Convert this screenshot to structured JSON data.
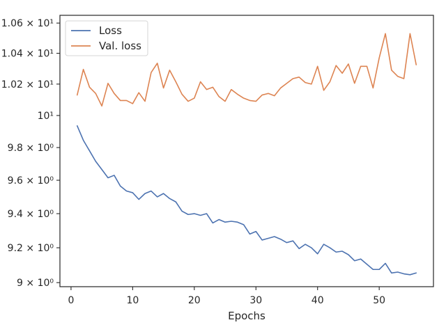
{
  "chart_data": {
    "type": "line",
    "xlabel": "Epochs",
    "ylabel": "",
    "y_scale": "log",
    "grid": false,
    "legend_position": "top-left",
    "xlim": [
      -1.8,
      58.8
    ],
    "ylim": [
      8.977,
      10.652
    ],
    "x_ticks": [
      {
        "value": 0,
        "label": "0"
      },
      {
        "value": 10,
        "label": "10"
      },
      {
        "value": 20,
        "label": "20"
      },
      {
        "value": 30,
        "label": "30"
      },
      {
        "value": 40,
        "label": "40"
      },
      {
        "value": 50,
        "label": "50"
      }
    ],
    "y_ticks": [
      {
        "value": 9.0,
        "label": "9 × 10⁰"
      },
      {
        "value": 9.2,
        "label": "9.2 × 10⁰"
      },
      {
        "value": 9.4,
        "label": "9.4 × 10⁰"
      },
      {
        "value": 9.6,
        "label": "9.6 × 10⁰"
      },
      {
        "value": 9.8,
        "label": "9.8 × 10⁰"
      },
      {
        "value": 10.0,
        "label": "10¹"
      },
      {
        "value": 10.2,
        "label": "1.02 × 10¹"
      },
      {
        "value": 10.4,
        "label": "1.04 × 10¹"
      },
      {
        "value": 10.6,
        "label": "1.06 × 10¹"
      }
    ],
    "series": [
      {
        "name": "Loss",
        "color": "#4c72b0",
        "x": [
          1,
          2,
          3,
          4,
          5,
          6,
          7,
          8,
          9,
          10,
          11,
          12,
          13,
          14,
          15,
          16,
          17,
          18,
          19,
          20,
          21,
          22,
          23,
          24,
          25,
          26,
          27,
          28,
          29,
          30,
          31,
          32,
          33,
          34,
          35,
          36,
          37,
          38,
          39,
          40,
          41,
          42,
          43,
          44,
          45,
          46,
          47,
          48,
          49,
          50,
          51,
          52,
          53,
          54,
          55,
          56
        ],
        "values": [
          9.935,
          9.845,
          9.78,
          9.715,
          9.665,
          9.615,
          9.63,
          9.565,
          9.535,
          9.525,
          9.485,
          9.52,
          9.535,
          9.5,
          9.52,
          9.49,
          9.47,
          9.415,
          9.395,
          9.4,
          9.39,
          9.4,
          9.345,
          9.365,
          9.35,
          9.355,
          9.35,
          9.335,
          9.28,
          9.295,
          9.245,
          9.255,
          9.265,
          9.25,
          9.23,
          9.24,
          9.195,
          9.22,
          9.2,
          9.165,
          9.22,
          9.2,
          9.175,
          9.18,
          9.16,
          9.125,
          9.135,
          9.105,
          9.075,
          9.075,
          9.11,
          9.055,
          9.06,
          9.05,
          9.045,
          9.055
        ]
      },
      {
        "name": "Val. loss",
        "color": "#dd8452",
        "x": [
          1,
          2,
          3,
          4,
          5,
          6,
          7,
          8,
          9,
          10,
          11,
          12,
          13,
          14,
          15,
          16,
          17,
          18,
          19,
          20,
          21,
          22,
          23,
          24,
          25,
          26,
          27,
          28,
          29,
          30,
          31,
          32,
          33,
          34,
          35,
          36,
          37,
          38,
          39,
          40,
          41,
          42,
          43,
          44,
          45,
          46,
          47,
          48,
          49,
          50,
          51,
          52,
          53,
          54,
          55,
          56
        ],
        "values": [
          10.13,
          10.295,
          10.18,
          10.14,
          10.06,
          10.205,
          10.14,
          10.095,
          10.095,
          10.075,
          10.145,
          10.09,
          10.275,
          10.335,
          10.175,
          10.29,
          10.215,
          10.135,
          10.09,
          10.11,
          10.215,
          10.165,
          10.18,
          10.12,
          10.09,
          10.165,
          10.135,
          10.11,
          10.095,
          10.09,
          10.13,
          10.14,
          10.125,
          10.175,
          10.205,
          10.235,
          10.245,
          10.21,
          10.2,
          10.315,
          10.16,
          10.215,
          10.32,
          10.27,
          10.33,
          10.205,
          10.315,
          10.315,
          10.175,
          10.37,
          10.53,
          10.29,
          10.25,
          10.235,
          10.53,
          10.325
        ]
      }
    ]
  }
}
